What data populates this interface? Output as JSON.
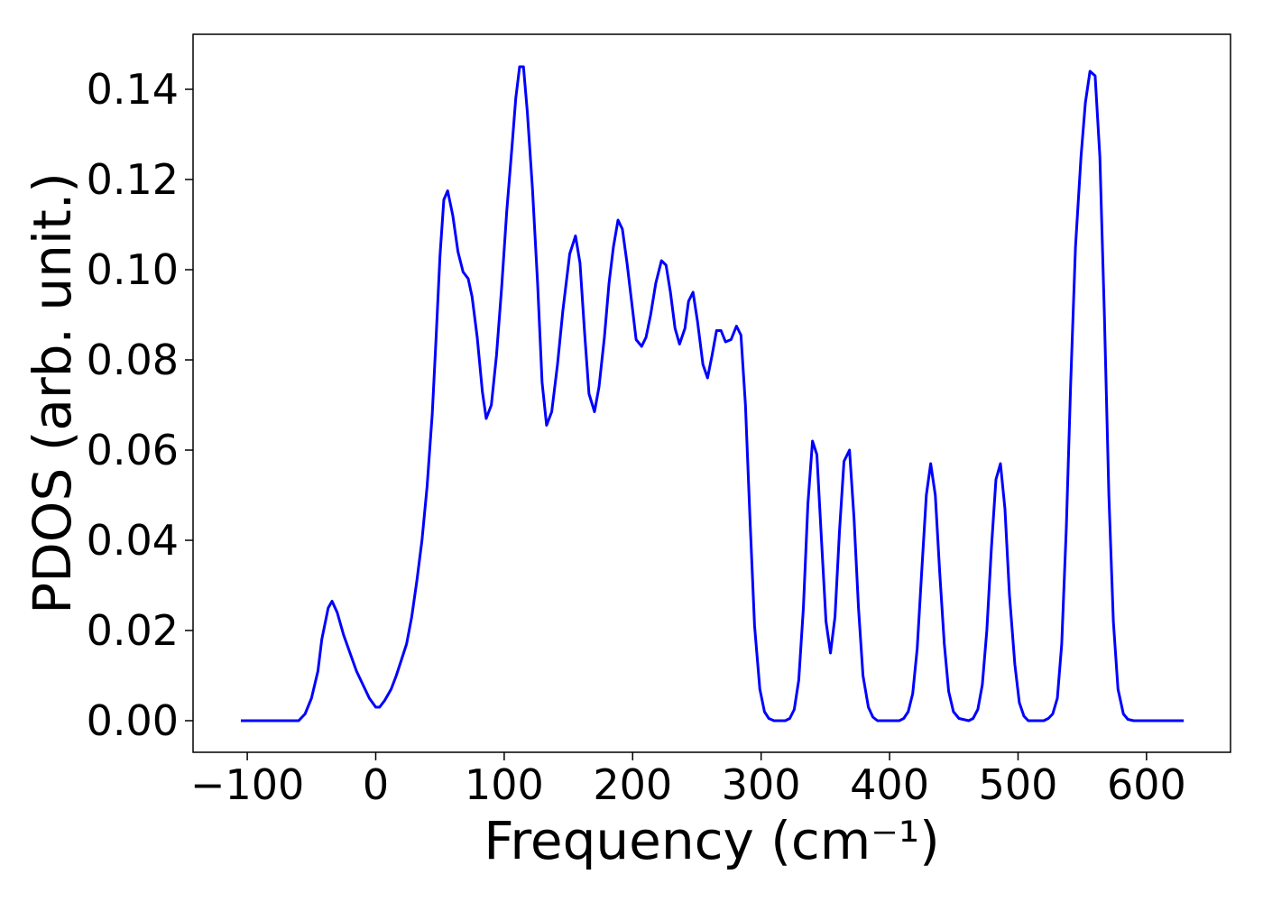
{
  "chart_data": {
    "type": "line",
    "xlabel": "Frequency (cm⁻¹)",
    "ylabel": "PDOS (arb. unit.)",
    "xlim": [
      -142.2,
      665.4
    ],
    "ylim": [
      -0.007,
      0.1522
    ],
    "xticks": [
      {
        "value": -100,
        "label": "−100"
      },
      0,
      100,
      200,
      300,
      400,
      500,
      600
    ],
    "yticks": [
      {
        "value": 0,
        "label": "0.00"
      },
      {
        "value": 0.02,
        "label": "0.02"
      },
      {
        "value": 0.04,
        "label": "0.04"
      },
      {
        "value": 0.06,
        "label": "0.06"
      },
      {
        "value": 0.08,
        "label": "0.08"
      },
      {
        "value": 0.1,
        "label": "0.10"
      },
      {
        "value": 0.12,
        "label": "0.12"
      },
      {
        "value": 0.14,
        "label": "0.14"
      }
    ],
    "x": [
      -105,
      -60,
      -55,
      -50,
      -45,
      -42,
      -37,
      -34,
      -30,
      -25,
      -20,
      -15,
      -10,
      -5,
      0,
      3,
      7,
      12,
      16,
      20,
      24,
      28,
      32,
      36,
      40,
      44,
      47,
      50,
      53,
      56,
      60,
      64,
      68,
      72,
      75,
      79,
      83,
      86,
      90,
      94,
      98,
      102,
      106,
      109,
      112,
      115,
      118,
      122,
      126,
      129.5,
      133,
      137,
      141.5,
      145.7,
      151,
      155.5,
      159,
      162.6,
      166,
      170.3,
      173.8,
      178,
      181.6,
      185,
      188.6,
      192,
      195.6,
      200,
      202.7,
      207,
      210.4,
      214,
      218,
      222.4,
      226,
      229.4,
      233,
      236.5,
      240.7,
      243.5,
      247,
      250.5,
      254.7,
      258.3,
      261.8,
      265.3,
      268.8,
      272.3,
      276.6,
      280.8,
      284.3,
      287.8,
      291.3,
      294.9,
      299,
      302.6,
      306,
      310,
      318.8,
      322.3,
      325.8,
      329.3,
      332.9,
      336.4,
      340,
      343.4,
      347,
      350.5,
      354,
      357.5,
      361,
      364.5,
      368.8,
      372.3,
      375.8,
      379.3,
      383.5,
      387,
      390.6,
      407.5,
      411,
      414.5,
      418,
      421.5,
      425,
      428.6,
      432,
      435.6,
      439,
      442.6,
      446,
      449.7,
      454,
      461.6,
      465,
      468.7,
      472.2,
      475.7,
      479.2,
      482.8,
      486.3,
      489.8,
      493.3,
      497.5,
      501,
      504.6,
      508,
      520,
      523.6,
      527,
      530.6,
      534,
      537.6,
      541,
      544.7,
      549,
      552.4,
      556,
      560,
      563.7,
      567.2,
      570.7,
      574.2,
      577.8,
      582,
      585.5,
      590,
      629
    ],
    "series": [
      {
        "name": "PDOS",
        "color": "#0000ff",
        "values": [
          0,
          0,
          0.0015,
          0.005,
          0.011,
          0.018,
          0.025,
          0.0265,
          0.024,
          0.019,
          0.015,
          0.011,
          0.008,
          0.005,
          0.003,
          0.003,
          0.0045,
          0.007,
          0.01,
          0.0135,
          0.017,
          0.023,
          0.031,
          0.04,
          0.052,
          0.068,
          0.085,
          0.103,
          0.1155,
          0.1175,
          0.112,
          0.104,
          0.0995,
          0.098,
          0.094,
          0.085,
          0.073,
          0.067,
          0.07,
          0.081,
          0.096,
          0.113,
          0.127,
          0.138,
          0.145,
          0.145,
          0.135,
          0.118,
          0.097,
          0.075,
          0.0655,
          0.0685,
          0.079,
          0.091,
          0.1035,
          0.1075,
          0.1015,
          0.086,
          0.0725,
          0.0685,
          0.074,
          0.085,
          0.097,
          0.105,
          0.111,
          0.109,
          0.1015,
          0.091,
          0.0845,
          0.083,
          0.085,
          0.09,
          0.097,
          0.102,
          0.101,
          0.095,
          0.087,
          0.0835,
          0.087,
          0.093,
          0.095,
          0.0885,
          0.079,
          0.076,
          0.081,
          0.0865,
          0.0865,
          0.084,
          0.0845,
          0.0875,
          0.0855,
          0.07,
          0.045,
          0.021,
          0.007,
          0.002,
          0.0005,
          0,
          0,
          0.0005,
          0.0025,
          0.009,
          0.025,
          0.048,
          0.062,
          0.059,
          0.04,
          0.022,
          0.015,
          0.023,
          0.042,
          0.0575,
          0.06,
          0.045,
          0.025,
          0.01,
          0.003,
          0.0008,
          0,
          0,
          0.0005,
          0.002,
          0.006,
          0.016,
          0.033,
          0.05,
          0.057,
          0.05,
          0.033,
          0.017,
          0.0065,
          0.002,
          0.0005,
          0,
          0.0005,
          0.0025,
          0.008,
          0.02,
          0.038,
          0.0535,
          0.057,
          0.047,
          0.028,
          0.0125,
          0.004,
          0.001,
          0,
          0,
          0.0005,
          0.0015,
          0.005,
          0.017,
          0.043,
          0.075,
          0.105,
          0.125,
          0.137,
          0.144,
          0.143,
          0.125,
          0.09,
          0.05,
          0.022,
          0.007,
          0.0015,
          0.0003,
          0,
          0
        ]
      }
    ]
  }
}
